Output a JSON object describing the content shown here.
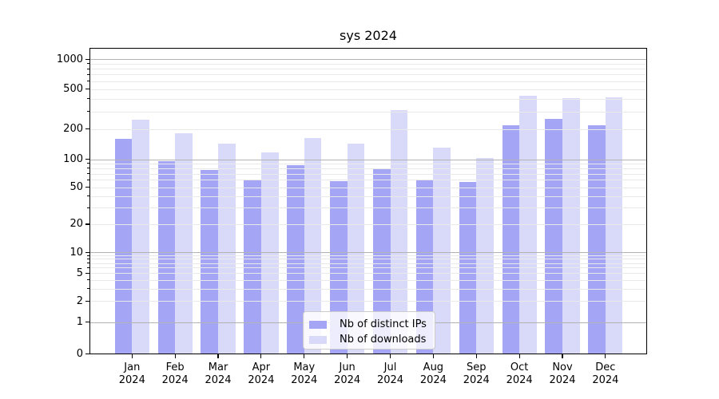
{
  "chart_data": {
    "type": "bar",
    "title": "sys 2024",
    "categories": [
      "Jan",
      "Feb",
      "Mar",
      "Apr",
      "May",
      "Jun",
      "Jul",
      "Aug",
      "Sep",
      "Oct",
      "Nov",
      "Dec"
    ],
    "x_tick_second_line": "2024",
    "series": [
      {
        "name": "Nb of distinct IPs",
        "color": "#a5a5f5",
        "values": [
          160,
          95,
          76,
          59,
          86,
          58,
          78,
          61,
          57,
          220,
          252,
          218
        ]
      },
      {
        "name": "Nb of downloads",
        "color": "#d9d9fa",
        "values": [
          248,
          180,
          142,
          116,
          163,
          142,
          310,
          131,
          103,
          430,
          408,
          417
        ]
      }
    ],
    "y_ticks": [
      0,
      1,
      2,
      5,
      10,
      20,
      50,
      100,
      200,
      500,
      1000
    ],
    "ylim": [
      0,
      1300
    ],
    "yscale": "log-like (symlog/asinh), linear below 1",
    "grid": "horizontal major and minor gridlines drawn over bars",
    "legend_position": "inside bottom center",
    "colors": {
      "major_grid": "#b3b3b3",
      "minor_grid": "#e9e9e9",
      "spine": "#000000"
    }
  }
}
